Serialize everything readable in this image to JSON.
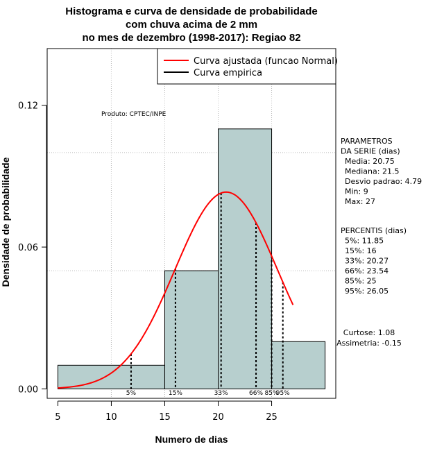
{
  "chart_data": {
    "type": "histogram",
    "title_lines": [
      "Histograma e curva de densidade de probabilidade",
      "com chuva acima de 2 mm",
      "no mes de dezembro (1998-2017): Regiao 82"
    ],
    "xlabel": "Numero de dias",
    "ylabel": "Densidade de probabilidade",
    "xlim": [
      4,
      31
    ],
    "ylim": [
      -0.004,
      0.144
    ],
    "x_ticks": [
      "5",
      "10",
      "15",
      "20",
      "25"
    ],
    "y_ticks": [
      "0.00",
      "0.06",
      "0.12"
    ],
    "x_grid": [
      10,
      15,
      20,
      25
    ],
    "y_grid": [
      0.05,
      0.1
    ],
    "bins": [
      {
        "start": 5,
        "end": 15,
        "density": 0.01
      },
      {
        "start": 15,
        "end": 20,
        "density": 0.05
      },
      {
        "start": 20,
        "end": 25,
        "density": 0.11
      },
      {
        "start": 25,
        "end": 30,
        "density": 0.02
      }
    ],
    "normal_fit": {
      "mean": 20.75,
      "sd": 4.79,
      "from": 5,
      "to": 27
    },
    "percentiles": [
      {
        "label": "5%",
        "value": 11.85
      },
      {
        "label": "15%",
        "value": 16
      },
      {
        "label": "33%",
        "value": 20.27
      },
      {
        "label": "66%",
        "value": 23.54
      },
      {
        "label": "85%",
        "value": 25
      },
      {
        "label": "95%",
        "value": 26.05
      }
    ],
    "legend": [
      {
        "label": "Curva ajustada (funcao Normal)",
        "color": "#ff0000"
      },
      {
        "label": "Curva empirica",
        "color": "#000000"
      }
    ],
    "credit": "Produto: CPTEC/INPE",
    "side_panels": [
      {
        "lines": [
          "PARAMETROS",
          "DA SERIE (dias)",
          "Media: 20.75",
          "Mediana: 21.5",
          "Desvio padrao: 4.79",
          "Min: 9",
          "Max: 27"
        ],
        "indent_from": 2
      },
      {
        "lines": [
          "PERCENTIS (dias)",
          "5%: 11.85",
          "15%: 16",
          "33%: 20.27",
          "66%: 23.54",
          "85%: 25",
          "95%: 26.05"
        ],
        "indent_from": 1
      },
      {
        "lines": [
          "Curtose: 1.08",
          "Assimetria: -0.15"
        ],
        "indent_from": 0
      }
    ],
    "colors": {
      "bar_fill": "#b7cfce",
      "curve": "#ff0000",
      "grid": "#bbbbbb"
    }
  }
}
